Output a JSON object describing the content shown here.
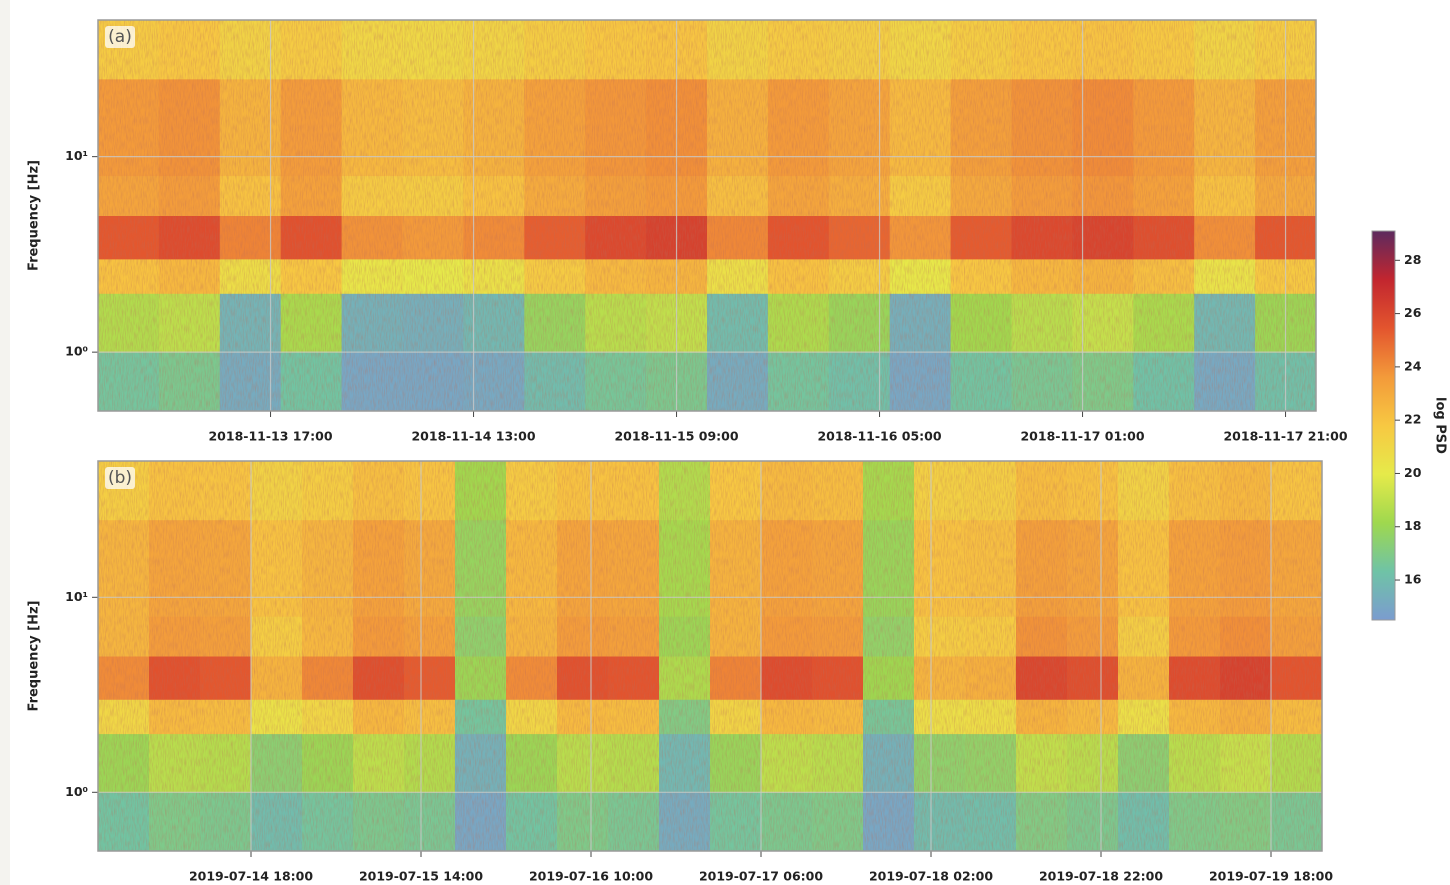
{
  "chart_data": [
    {
      "type": "heatmap",
      "label": "(a)",
      "ylabel": "Frequency [Hz]",
      "ylog": true,
      "grid": true,
      "xbins": [
        "2018-11-13 00:00",
        "2018-11-13 06:00",
        "2018-11-13 12:00",
        "2018-11-13 18:00",
        "2018-11-14 00:00",
        "2018-11-14 06:00",
        "2018-11-14 12:00",
        "2018-11-14 18:00",
        "2018-11-15 00:00",
        "2018-11-15 06:00",
        "2018-11-15 12:00",
        "2018-11-15 18:00",
        "2018-11-16 00:00",
        "2018-11-16 06:00",
        "2018-11-16 12:00",
        "2018-11-16 18:00",
        "2018-11-17 00:00",
        "2018-11-17 06:00",
        "2018-11-17 12:00",
        "2018-11-17 18:00",
        "2018-11-18 00:00"
      ],
      "ybins": [
        0.5,
        1,
        2,
        3,
        5,
        8,
        25,
        50
      ],
      "values": [
        [
          16.5,
          16.8,
          15.2,
          16.4,
          15.0,
          15.0,
          15.1,
          16.0,
          16.6,
          16.8,
          15.2,
          16.5,
          16.2,
          15.0,
          16.4,
          16.7,
          16.9,
          16.3,
          15.1,
          16.2
        ],
        [
          18.6,
          18.9,
          15.6,
          18.4,
          15.5,
          15.4,
          15.8,
          17.8,
          18.8,
          19.0,
          16.0,
          18.5,
          17.9,
          15.4,
          18.2,
          18.8,
          19.1,
          18.4,
          15.8,
          18.0
        ],
        [
          22.0,
          22.4,
          20.6,
          21.8,
          20.2,
          20.0,
          20.4,
          21.6,
          22.3,
          22.5,
          20.5,
          22.0,
          21.5,
          20.1,
          21.8,
          22.4,
          22.6,
          22.1,
          20.3,
          21.7
        ],
        [
          25.4,
          25.8,
          24.2,
          25.6,
          23.8,
          23.6,
          24.0,
          25.2,
          25.9,
          26.2,
          24.1,
          25.5,
          25.0,
          23.7,
          25.3,
          25.9,
          26.1,
          25.7,
          23.9,
          25.4
        ],
        [
          23.2,
          23.5,
          22.0,
          23.3,
          21.6,
          21.5,
          22.0,
          22.9,
          23.4,
          23.6,
          22.1,
          23.2,
          22.8,
          21.6,
          23.0,
          23.5,
          23.7,
          23.3,
          22.0,
          23.0
        ],
        [
          23.6,
          23.8,
          22.6,
          23.5,
          22.4,
          22.2,
          22.6,
          23.3,
          23.7,
          23.9,
          22.7,
          23.6,
          23.2,
          22.3,
          23.4,
          23.8,
          24.0,
          23.6,
          22.5,
          23.4
        ],
        [
          21.6,
          21.8,
          21.2,
          21.6,
          21.0,
          20.9,
          21.1,
          21.5,
          21.8,
          21.9,
          21.2,
          21.6,
          21.4,
          21.0,
          21.5,
          21.8,
          21.9,
          21.7,
          21.1,
          21.5
        ]
      ],
      "xlim": [
        "2018-11-13 00:00",
        "2018-11-18 00:00"
      ],
      "xticks": [
        "2018-11-13 17:00",
        "2018-11-14 13:00",
        "2018-11-15 09:00",
        "2018-11-16 05:00",
        "2018-11-17 01:00",
        "2018-11-17 21:00"
      ],
      "ylim": [
        0.5,
        50
      ],
      "yticks": [
        {
          "value": 1,
          "label": "10⁰"
        },
        {
          "value": 10,
          "label": "10¹"
        }
      ]
    },
    {
      "type": "heatmap",
      "label": "(b)",
      "ylabel": "Frequency [Hz]",
      "ylog": true,
      "grid": true,
      "xbins": [
        "2019-07-14 00:00",
        "2019-07-14 06:00",
        "2019-07-14 12:00",
        "2019-07-14 18:00",
        "2019-07-15 00:00",
        "2019-07-15 06:00",
        "2019-07-15 12:00",
        "2019-07-15 18:00",
        "2019-07-16 00:00",
        "2019-07-16 06:00",
        "2019-07-16 12:00",
        "2019-07-16 18:00",
        "2019-07-17 00:00",
        "2019-07-17 06:00",
        "2019-07-17 12:00",
        "2019-07-17 18:00",
        "2019-07-18 00:00",
        "2019-07-18 06:00",
        "2019-07-18 12:00",
        "2019-07-18 18:00",
        "2019-07-19 00:00",
        "2019-07-19 06:00",
        "2019-07-19 12:00",
        "2019-07-19 18:00",
        "2019-07-20 00:00"
      ],
      "ybins": [
        0.5,
        1,
        2,
        3,
        5,
        8,
        25,
        50
      ],
      "values": [
        [
          16.4,
          16.9,
          16.8,
          16.0,
          16.5,
          16.8,
          16.7,
          15.0,
          16.4,
          16.9,
          16.7,
          15.2,
          16.5,
          16.8,
          16.9,
          15.0,
          16.0,
          16.1,
          17.0,
          16.8,
          16.1,
          16.9,
          17.0,
          16.7
        ],
        [
          18.0,
          18.8,
          18.7,
          17.4,
          18.0,
          18.9,
          18.6,
          15.5,
          18.0,
          18.8,
          18.7,
          15.8,
          17.9,
          18.9,
          18.8,
          15.5,
          17.5,
          17.6,
          19.0,
          18.8,
          17.4,
          18.8,
          19.1,
          18.6
        ],
        [
          21.0,
          22.3,
          22.2,
          20.4,
          21.0,
          22.4,
          22.1,
          16.5,
          21.0,
          22.3,
          22.2,
          17.0,
          21.1,
          22.4,
          22.3,
          16.6,
          20.5,
          20.6,
          22.6,
          22.3,
          20.5,
          22.4,
          22.7,
          22.2
        ],
        [
          24.0,
          25.6,
          25.4,
          22.6,
          24.1,
          25.7,
          25.3,
          18.0,
          24.0,
          25.6,
          25.5,
          18.5,
          24.2,
          25.8,
          25.6,
          18.1,
          22.5,
          22.7,
          26.0,
          25.7,
          22.6,
          25.8,
          26.2,
          25.5
        ],
        [
          22.5,
          23.5,
          23.4,
          21.5,
          22.4,
          23.6,
          23.3,
          17.5,
          22.5,
          23.5,
          23.4,
          18.0,
          22.6,
          23.6,
          23.5,
          17.6,
          21.5,
          21.6,
          23.8,
          23.5,
          21.4,
          23.6,
          23.9,
          23.4
        ],
        [
          22.5,
          23.2,
          23.1,
          22.0,
          22.5,
          23.3,
          23.0,
          17.8,
          22.4,
          23.2,
          23.1,
          18.3,
          22.6,
          23.3,
          23.2,
          17.9,
          22.0,
          22.1,
          23.4,
          23.2,
          22.0,
          23.3,
          23.5,
          23.1
        ],
        [
          21.5,
          22.0,
          21.9,
          21.2,
          21.5,
          22.1,
          21.9,
          18.2,
          21.6,
          22.0,
          22.0,
          18.6,
          21.8,
          22.3,
          22.2,
          18.3,
          21.3,
          21.4,
          22.2,
          22.0,
          21.2,
          22.1,
          22.4,
          21.9
        ]
      ],
      "xlim": [
        "2019-07-14 00:00",
        "2019-07-20 00:00"
      ],
      "xticks": [
        "2019-07-14 18:00",
        "2019-07-15 14:00",
        "2019-07-16 10:00",
        "2019-07-17 06:00",
        "2019-07-18 02:00",
        "2019-07-18 22:00",
        "2019-07-19 18:00"
      ],
      "ylim": [
        0.5,
        50
      ],
      "yticks": [
        {
          "value": 1,
          "label": "10⁰"
        },
        {
          "value": 10,
          "label": "10¹"
        }
      ]
    },
    {
      "type": "colorbar",
      "label": "log PSD",
      "ylim": [
        14.5,
        29.1
      ],
      "yticks": [
        16,
        18,
        20,
        22,
        24,
        26,
        28
      ],
      "colors": [
        "#7b9ccf",
        "#6fc3a6",
        "#9fd84e",
        "#e6ea4a",
        "#f7c842",
        "#f39a3a",
        "#e3552e",
        "#c2262f",
        "#5d2a5e"
      ]
    }
  ]
}
